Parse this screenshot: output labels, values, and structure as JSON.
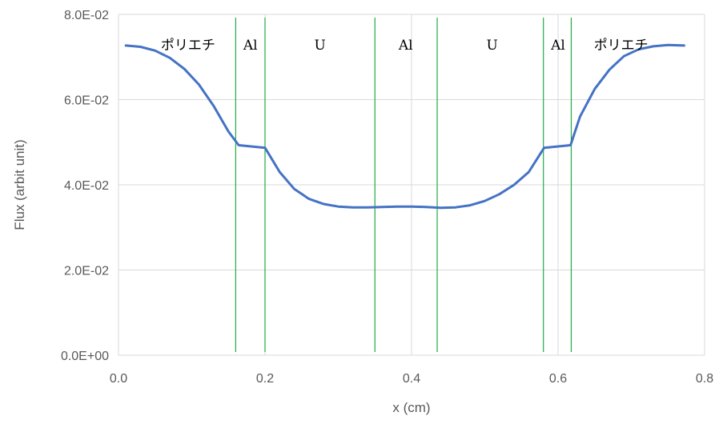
{
  "chart_data": {
    "type": "line",
    "title": "",
    "xlabel": "x (cm)",
    "ylabel": "Flux (arbit unit)",
    "xlim": [
      0,
      0.8
    ],
    "ylim": [
      0,
      0.08
    ],
    "xticks": [
      0,
      0.2,
      0.4,
      0.6,
      0.8
    ],
    "xtick_labels": [
      "0.0",
      "0.2",
      "0.4",
      "0.6",
      "0.8"
    ],
    "yticks": [
      0,
      0.02,
      0.04,
      0.06,
      0.08
    ],
    "ytick_labels": [
      "0.0E+00",
      "2.0E-02",
      "4.0E-02",
      "6.0E-02",
      "8.0E-02"
    ],
    "grid": true,
    "colors": {
      "series": "#4472c4",
      "boundary": "#22aa44",
      "grid": "#d9d9d9",
      "axis_text": "#595959"
    },
    "series": [
      {
        "x": [
          0.01,
          0.03,
          0.05,
          0.07,
          0.09,
          0.11,
          0.13,
          0.15,
          0.164,
          0.2,
          0.22,
          0.24,
          0.26,
          0.28,
          0.3,
          0.32,
          0.34,
          0.36,
          0.38,
          0.4,
          0.42,
          0.44,
          0.46,
          0.48,
          0.5,
          0.52,
          0.54,
          0.56,
          0.581,
          0.617,
          0.63,
          0.65,
          0.67,
          0.69,
          0.71,
          0.73,
          0.75,
          0.772
        ],
        "values": [
          0.0727,
          0.0724,
          0.0715,
          0.0698,
          0.0672,
          0.0635,
          0.0585,
          0.0525,
          0.0493,
          0.0487,
          0.043,
          0.039,
          0.0367,
          0.0355,
          0.0349,
          0.0347,
          0.0347,
          0.0348,
          0.0349,
          0.0349,
          0.0348,
          0.0346,
          0.0347,
          0.0352,
          0.0362,
          0.0378,
          0.04,
          0.043,
          0.0487,
          0.0493,
          0.056,
          0.0625,
          0.067,
          0.0702,
          0.0718,
          0.0725,
          0.0728,
          0.0727
        ]
      }
    ],
    "boundaries": [
      0.16,
      0.2,
      0.35,
      0.435,
      0.58,
      0.618
    ],
    "regions": [
      {
        "label": "ポリエチ",
        "x": 0.095
      },
      {
        "label": "Al",
        "x": 0.18
      },
      {
        "label": "U",
        "x": 0.275
      },
      {
        "label": "Al",
        "x": 0.392
      },
      {
        "label": "U",
        "x": 0.51
      },
      {
        "label": "Al",
        "x": 0.6
      },
      {
        "label": "ポリエチ",
        "x": 0.686
      }
    ]
  }
}
